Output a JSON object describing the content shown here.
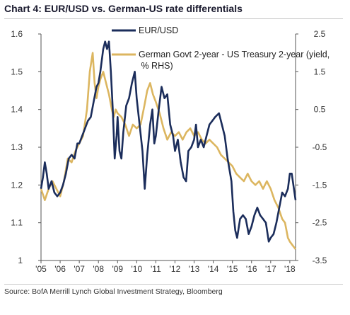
{
  "title": "Chart 4: EUR/USD vs. German-US rate differentials",
  "source": "Source: BofA Merrill Lynch Global Investment Strategy, Bloomberg",
  "chart_data": {
    "type": "line",
    "x_range": [
      2005.0,
      2018.3
    ],
    "x_ticks": [
      "'05",
      "'06",
      "'07",
      "'08",
      "'09",
      "'10",
      "'11",
      "'12",
      "'13",
      "'14",
      "'15",
      "'16",
      "'17",
      "'18"
    ],
    "y_left": {
      "range": [
        1.0,
        1.6
      ],
      "ticks": [
        "1",
        "1.1",
        "1.2",
        "1.3",
        "1.4",
        "1.5",
        "1.6"
      ]
    },
    "y_right": {
      "range": [
        -3.5,
        2.5
      ],
      "ticks": [
        "2.5",
        "1.5",
        "0.5",
        "-0.5",
        "-1.5",
        "-2.5",
        "-3.5"
      ]
    },
    "grid": false,
    "legend_position": "top-center",
    "series": [
      {
        "name": "EUR/USD",
        "axis": "left",
        "color": "#1b2d5b",
        "points": [
          [
            2005.0,
            1.19
          ],
          [
            2005.1,
            1.22
          ],
          [
            2005.2,
            1.26
          ],
          [
            2005.3,
            1.23
          ],
          [
            2005.4,
            1.19
          ],
          [
            2005.55,
            1.21
          ],
          [
            2005.7,
            1.18
          ],
          [
            2005.85,
            1.17
          ],
          [
            2006.0,
            1.18
          ],
          [
            2006.15,
            1.2
          ],
          [
            2006.3,
            1.23
          ],
          [
            2006.45,
            1.27
          ],
          [
            2006.6,
            1.28
          ],
          [
            2006.75,
            1.27
          ],
          [
            2006.9,
            1.31
          ],
          [
            2007.0,
            1.31
          ],
          [
            2007.15,
            1.33
          ],
          [
            2007.3,
            1.35
          ],
          [
            2007.45,
            1.37
          ],
          [
            2007.6,
            1.38
          ],
          [
            2007.75,
            1.42
          ],
          [
            2007.9,
            1.46
          ],
          [
            2008.0,
            1.47
          ],
          [
            2008.1,
            1.5
          ],
          [
            2008.25,
            1.56
          ],
          [
            2008.35,
            1.58
          ],
          [
            2008.45,
            1.56
          ],
          [
            2008.55,
            1.58
          ],
          [
            2008.65,
            1.5
          ],
          [
            2008.75,
            1.4
          ],
          [
            2008.85,
            1.27
          ],
          [
            2008.95,
            1.33
          ],
          [
            2009.0,
            1.38
          ],
          [
            2009.1,
            1.29
          ],
          [
            2009.2,
            1.27
          ],
          [
            2009.3,
            1.34
          ],
          [
            2009.45,
            1.41
          ],
          [
            2009.6,
            1.43
          ],
          [
            2009.75,
            1.47
          ],
          [
            2009.9,
            1.5
          ],
          [
            2010.0,
            1.43
          ],
          [
            2010.15,
            1.36
          ],
          [
            2010.3,
            1.29
          ],
          [
            2010.42,
            1.19
          ],
          [
            2010.55,
            1.28
          ],
          [
            2010.7,
            1.36
          ],
          [
            2010.82,
            1.4
          ],
          [
            2010.92,
            1.31
          ],
          [
            2011.0,
            1.33
          ],
          [
            2011.15,
            1.4
          ],
          [
            2011.3,
            1.46
          ],
          [
            2011.45,
            1.43
          ],
          [
            2011.6,
            1.44
          ],
          [
            2011.75,
            1.36
          ],
          [
            2011.9,
            1.33
          ],
          [
            2012.0,
            1.29
          ],
          [
            2012.15,
            1.32
          ],
          [
            2012.3,
            1.26
          ],
          [
            2012.45,
            1.22
          ],
          [
            2012.58,
            1.21
          ],
          [
            2012.7,
            1.29
          ],
          [
            2012.85,
            1.3
          ],
          [
            2013.0,
            1.32
          ],
          [
            2013.1,
            1.36
          ],
          [
            2013.2,
            1.3
          ],
          [
            2013.35,
            1.32
          ],
          [
            2013.5,
            1.3
          ],
          [
            2013.65,
            1.33
          ],
          [
            2013.8,
            1.36
          ],
          [
            2013.95,
            1.37
          ],
          [
            2014.1,
            1.38
          ],
          [
            2014.3,
            1.39
          ],
          [
            2014.45,
            1.36
          ],
          [
            2014.6,
            1.33
          ],
          [
            2014.75,
            1.27
          ],
          [
            2014.95,
            1.21
          ],
          [
            2015.05,
            1.13
          ],
          [
            2015.15,
            1.08
          ],
          [
            2015.25,
            1.06
          ],
          [
            2015.4,
            1.11
          ],
          [
            2015.55,
            1.12
          ],
          [
            2015.7,
            1.11
          ],
          [
            2015.85,
            1.07
          ],
          [
            2016.0,
            1.09
          ],
          [
            2016.15,
            1.12
          ],
          [
            2016.3,
            1.14
          ],
          [
            2016.45,
            1.12
          ],
          [
            2016.6,
            1.11
          ],
          [
            2016.75,
            1.1
          ],
          [
            2016.9,
            1.05
          ],
          [
            2017.0,
            1.06
          ],
          [
            2017.15,
            1.07
          ],
          [
            2017.3,
            1.1
          ],
          [
            2017.45,
            1.14
          ],
          [
            2017.6,
            1.18
          ],
          [
            2017.75,
            1.17
          ],
          [
            2017.9,
            1.19
          ],
          [
            2018.0,
            1.23
          ],
          [
            2018.1,
            1.23
          ],
          [
            2018.3,
            1.16
          ]
        ]
      },
      {
        "name": "German Govt 2-year - US Treasury 2-year (yield, % RHS)",
        "axis": "right",
        "color": "#dcb660",
        "points": [
          [
            2005.0,
            -1.6
          ],
          [
            2005.2,
            -1.9
          ],
          [
            2005.4,
            -1.6
          ],
          [
            2005.6,
            -1.4
          ],
          [
            2005.8,
            -1.6
          ],
          [
            2006.0,
            -1.8
          ],
          [
            2006.2,
            -1.4
          ],
          [
            2006.4,
            -0.8
          ],
          [
            2006.6,
            -0.9
          ],
          [
            2006.8,
            -0.6
          ],
          [
            2007.0,
            -0.4
          ],
          [
            2007.2,
            -0.2
          ],
          [
            2007.4,
            0.5
          ],
          [
            2007.55,
            1.5
          ],
          [
            2007.7,
            2.0
          ],
          [
            2007.8,
            1.2
          ],
          [
            2007.9,
            0.8
          ],
          [
            2008.0,
            1.1
          ],
          [
            2008.1,
            1.3
          ],
          [
            2008.25,
            1.5
          ],
          [
            2008.4,
            1.2
          ],
          [
            2008.55,
            0.9
          ],
          [
            2008.7,
            0.5
          ],
          [
            2008.8,
            0.3
          ],
          [
            2008.9,
            0.5
          ],
          [
            2009.0,
            0.4
          ],
          [
            2009.2,
            0.3
          ],
          [
            2009.4,
            0.1
          ],
          [
            2009.6,
            -0.2
          ],
          [
            2009.8,
            0.1
          ],
          [
            2010.0,
            0.0
          ],
          [
            2010.2,
            0.1
          ],
          [
            2010.4,
            0.6
          ],
          [
            2010.55,
            1.0
          ],
          [
            2010.7,
            1.2
          ],
          [
            2010.85,
            0.9
          ],
          [
            2011.0,
            0.7
          ],
          [
            2011.2,
            0.4
          ],
          [
            2011.4,
            0.0
          ],
          [
            2011.6,
            -0.3
          ],
          [
            2011.8,
            -0.1
          ],
          [
            2012.0,
            -0.2
          ],
          [
            2012.2,
            -0.1
          ],
          [
            2012.4,
            -0.3
          ],
          [
            2012.6,
            -0.1
          ],
          [
            2012.8,
            0.0
          ],
          [
            2013.0,
            -0.2
          ],
          [
            2013.2,
            -0.1
          ],
          [
            2013.4,
            -0.3
          ],
          [
            2013.6,
            -0.4
          ],
          [
            2013.8,
            -0.3
          ],
          [
            2014.0,
            -0.4
          ],
          [
            2014.2,
            -0.5
          ],
          [
            2014.4,
            -0.7
          ],
          [
            2014.6,
            -0.8
          ],
          [
            2014.8,
            -0.9
          ],
          [
            2015.0,
            -1.0
          ],
          [
            2015.2,
            -1.2
          ],
          [
            2015.4,
            -1.3
          ],
          [
            2015.6,
            -1.4
          ],
          [
            2015.8,
            -1.2
          ],
          [
            2016.0,
            -1.4
          ],
          [
            2016.2,
            -1.5
          ],
          [
            2016.4,
            -1.4
          ],
          [
            2016.6,
            -1.6
          ],
          [
            2016.8,
            -1.4
          ],
          [
            2017.0,
            -1.6
          ],
          [
            2017.2,
            -1.9
          ],
          [
            2017.4,
            -2.1
          ],
          [
            2017.6,
            -2.4
          ],
          [
            2017.75,
            -2.5
          ],
          [
            2017.9,
            -2.9
          ],
          [
            2018.0,
            -3.0
          ],
          [
            2018.15,
            -3.1
          ],
          [
            2018.3,
            -3.2
          ]
        ]
      }
    ]
  }
}
